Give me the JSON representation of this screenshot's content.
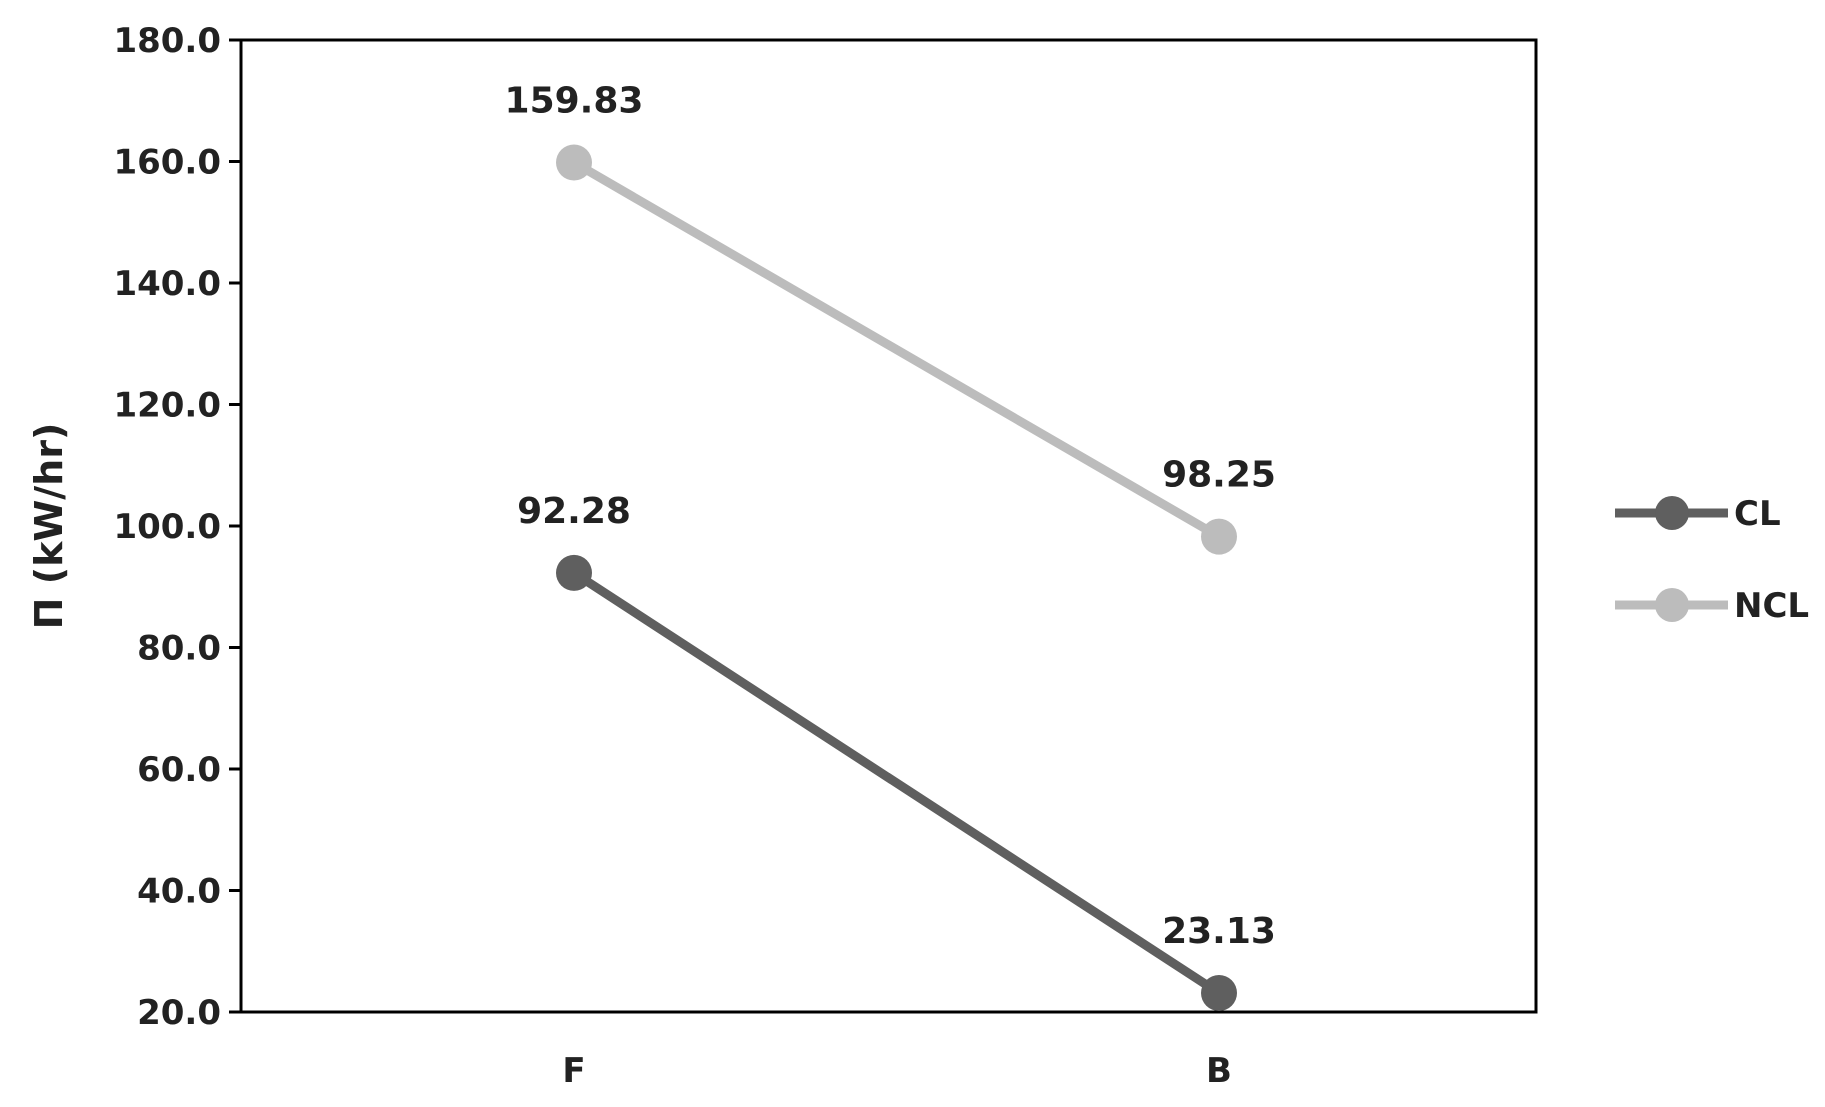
{
  "chart_data": {
    "type": "line",
    "categories": [
      "F",
      "B"
    ],
    "series": [
      {
        "name": "CL",
        "values": [
          92.28,
          23.13
        ],
        "labels": [
          "92.28",
          "23.13"
        ],
        "color": "#5f5f5f"
      },
      {
        "name": "NCL",
        "values": [
          159.83,
          98.25
        ],
        "labels": [
          "159.83",
          "98.25"
        ],
        "color": "#bcbcbc"
      }
    ],
    "title": "",
    "xlabel": "",
    "ylabel": "Π (kW/hr)",
    "ylim": [
      20,
      180
    ],
    "yticks": [
      "20.0",
      "40.0",
      "60.0",
      "80.0",
      "100.0",
      "120.0",
      "140.0",
      "160.0",
      "180.0"
    ],
    "grid": false,
    "legend_position": "right"
  }
}
